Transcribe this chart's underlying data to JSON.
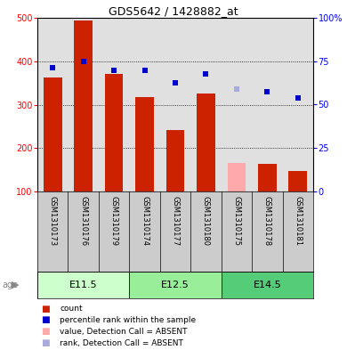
{
  "title": "GDS5642 / 1428882_at",
  "samples": [
    "GSM1310173",
    "GSM1310176",
    "GSM1310179",
    "GSM1310174",
    "GSM1310177",
    "GSM1310180",
    "GSM1310175",
    "GSM1310178",
    "GSM1310181"
  ],
  "counts": [
    362,
    493,
    370,
    318,
    241,
    325,
    165,
    163,
    147
  ],
  "percentile_ranks": [
    385,
    400,
    378,
    378,
    350,
    370,
    null,
    330,
    315
  ],
  "absent_rank": [
    null,
    null,
    null,
    null,
    null,
    null,
    335,
    null,
    null
  ],
  "is_absent": [
    false,
    false,
    false,
    false,
    false,
    false,
    true,
    false,
    false
  ],
  "age_groups": [
    {
      "label": "E11.5",
      "start": 0,
      "end": 3,
      "color": "#ccffcc"
    },
    {
      "label": "E12.5",
      "start": 3,
      "end": 6,
      "color": "#99ee99"
    },
    {
      "label": "E14.5",
      "start": 6,
      "end": 9,
      "color": "#55cc77"
    }
  ],
  "ylim_left": [
    100,
    500
  ],
  "ylim_right": [
    0,
    100
  ],
  "left_ticks": [
    100,
    200,
    300,
    400,
    500
  ],
  "right_ticks": [
    0,
    25,
    50,
    75,
    100
  ],
  "right_tick_labels": [
    "0",
    "25",
    "50",
    "75",
    "100%"
  ],
  "bar_color_normal": "#cc2200",
  "bar_color_absent": "#ffaaaa",
  "dot_color_normal": "#0000cc",
  "dot_color_absent": "#aaaadd",
  "grid_color": "#000000",
  "bg_plot": "#e0e0e0",
  "bg_label": "#cccccc",
  "legend_items": [
    {
      "label": "count",
      "color": "#cc2200"
    },
    {
      "label": "percentile rank within the sample",
      "color": "#0000cc"
    },
    {
      "label": "value, Detection Call = ABSENT",
      "color": "#ffaaaa"
    },
    {
      "label": "rank, Detection Call = ABSENT",
      "color": "#aaaadd"
    }
  ]
}
